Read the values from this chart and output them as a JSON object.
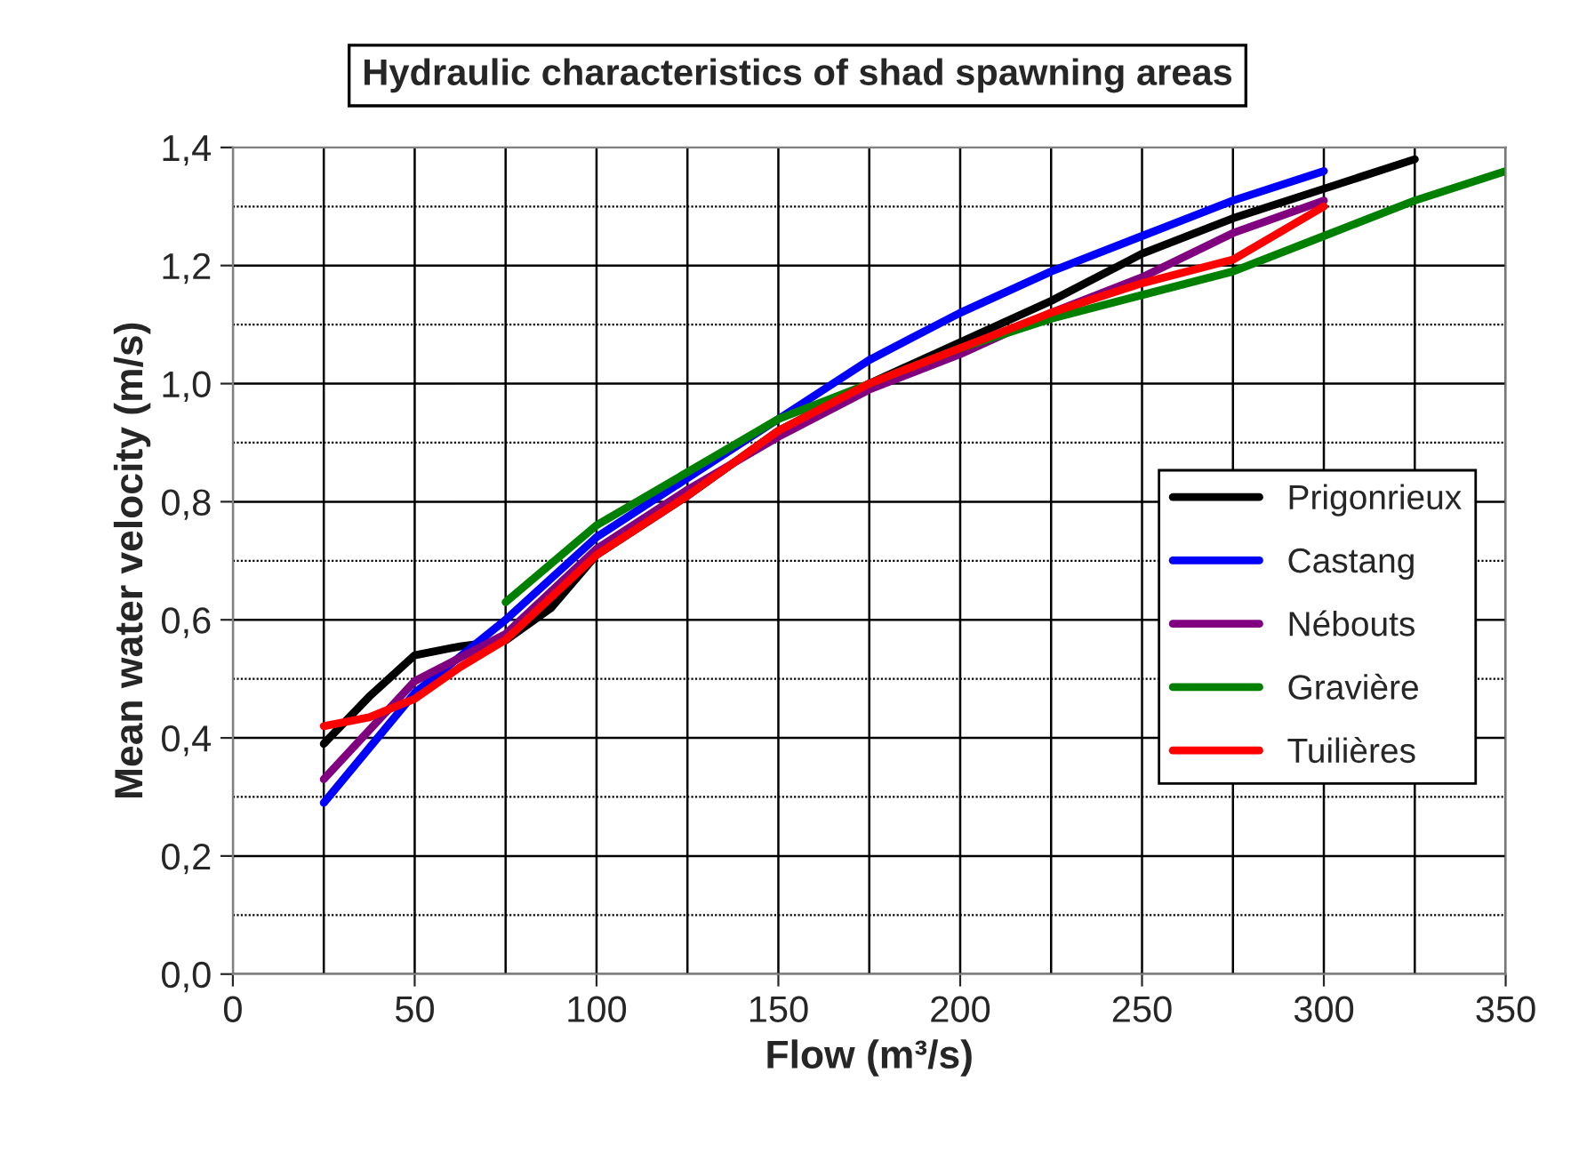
{
  "chart_data": {
    "type": "line",
    "title": "Hydraulic characteristics of shad spawning areas",
    "xlabel": "Flow (m³/s)",
    "ylabel": "Mean water velocity (m/s)",
    "xlim": [
      0,
      350
    ],
    "xticks": [
      0,
      50,
      100,
      150,
      200,
      250,
      300,
      350
    ],
    "ylim": [
      0,
      1.4
    ],
    "yticks": [
      {
        "value": 0,
        "label": "0,0"
      },
      {
        "value": 0.2,
        "label": "0,2"
      },
      {
        "value": 0.4,
        "label": "0,4"
      },
      {
        "value": 0.6,
        "label": "0,6"
      },
      {
        "value": 0.8,
        "label": "0,8"
      },
      {
        "value": 1.0,
        "label": "1,0"
      },
      {
        "value": 1.2,
        "label": "1,2"
      },
      {
        "value": 1.4,
        "label": "1,4"
      }
    ],
    "grid": true,
    "legend": "right",
    "marker": "none",
    "line_style": "solid",
    "series": [
      {
        "name": "Prigonrieux",
        "color": "#000000",
        "x": [
          25,
          37.5,
          50,
          62.5,
          75,
          87.5,
          100,
          125,
          150,
          175,
          200,
          225,
          250,
          275,
          300,
          325
        ],
        "values": [
          0.39,
          0.47,
          0.54,
          0.555,
          0.565,
          0.62,
          0.71,
          0.81,
          0.92,
          1.0,
          1.07,
          1.14,
          1.22,
          1.28,
          1.33,
          1.38
        ]
      },
      {
        "name": "Castang",
        "color": "#0000ff",
        "x": [
          25,
          50,
          75,
          100,
          125,
          150,
          175,
          200,
          225,
          250,
          275,
          300
        ],
        "values": [
          0.29,
          0.476,
          0.6,
          0.74,
          0.84,
          0.94,
          1.04,
          1.12,
          1.19,
          1.25,
          1.31,
          1.36
        ]
      },
      {
        "name": "Nébouts",
        "color": "#800080",
        "x": [
          25,
          50,
          75,
          100,
          125,
          150,
          175,
          200,
          225,
          250,
          275,
          300
        ],
        "values": [
          0.33,
          0.496,
          0.576,
          0.72,
          0.82,
          0.91,
          0.99,
          1.05,
          1.12,
          1.18,
          1.255,
          1.31
        ]
      },
      {
        "name": "Gravière",
        "color": "#008000",
        "x": [
          75,
          100,
          125,
          150,
          175,
          200,
          225,
          250,
          275,
          300,
          325,
          350
        ],
        "values": [
          0.63,
          0.76,
          0.85,
          0.94,
          1.0,
          1.06,
          1.11,
          1.15,
          1.19,
          1.25,
          1.31,
          1.36
        ]
      },
      {
        "name": "Tuilières",
        "color": "#ff0000",
        "x": [
          25,
          37.5,
          50,
          62.5,
          75,
          100,
          125,
          150,
          175,
          200,
          225,
          250,
          275,
          300
        ],
        "values": [
          0.42,
          0.435,
          0.466,
          0.52,
          0.566,
          0.71,
          0.81,
          0.92,
          1.0,
          1.06,
          1.12,
          1.17,
          1.21,
          1.3
        ]
      }
    ]
  }
}
